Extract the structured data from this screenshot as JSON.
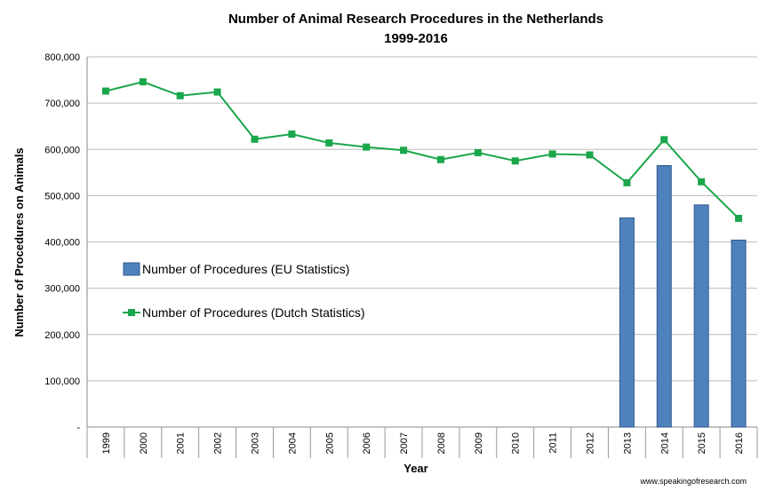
{
  "chart_data": {
    "type": "bar+line",
    "title": "Number of Animal Research Procedures in the Netherlands",
    "subtitle": "1999-2016",
    "xlabel": "Year",
    "ylabel": "Number of Procedures on Animals",
    "ylim": [
      0,
      800000
    ],
    "yticks": [
      "-",
      "100,000",
      "200,000",
      "300,000",
      "400,000",
      "500,000",
      "600,000",
      "700,000",
      "800,000"
    ],
    "grid": true,
    "legend_placement": "center-left",
    "categories": [
      "1999",
      "2000",
      "2001",
      "2002",
      "2003",
      "2004",
      "2005",
      "2006",
      "2007",
      "2008",
      "2009",
      "2010",
      "2011",
      "2012",
      "2013",
      "2014",
      "2015",
      "2016"
    ],
    "series": [
      {
        "name": "Number of Procedures (EU Statistics)",
        "type": "bar",
        "color": "#4f81bd",
        "values": [
          null,
          null,
          null,
          null,
          null,
          null,
          null,
          null,
          null,
          null,
          null,
          null,
          null,
          null,
          452000,
          565000,
          480000,
          404000
        ]
      },
      {
        "name": "Number of Procedures (Dutch Statistics)",
        "type": "line",
        "color": "#1aa64a",
        "values": [
          726000,
          746000,
          716000,
          724000,
          622000,
          633000,
          614000,
          605000,
          598000,
          578000,
          593000,
          575000,
          590000,
          588000,
          528000,
          621000,
          530000,
          451000
        ]
      }
    ],
    "credit": "www.speakingofresearch.com"
  }
}
